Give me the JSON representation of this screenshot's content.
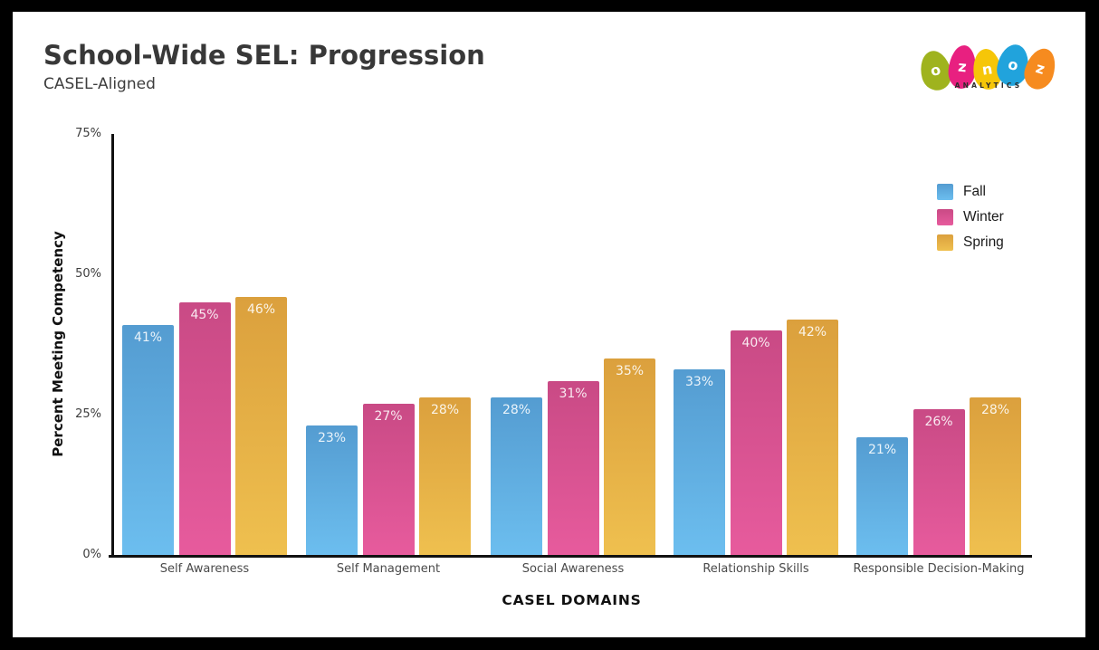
{
  "header": {
    "title": "School-Wide SEL: Progression",
    "subtitle": "CASEL-Aligned"
  },
  "logo": {
    "letters": [
      "o",
      "z",
      "n",
      "o",
      "z"
    ],
    "egg_colors": [
      "#9FB31E",
      "#E82080",
      "#F6C608",
      "#21A3DC",
      "#F68B1F"
    ],
    "tagline": "ANALYTICS"
  },
  "chart_data": {
    "type": "bar",
    "title": "School-Wide SEL: Progression",
    "subtitle": "CASEL-Aligned",
    "categories": [
      "Self Awareness",
      "Self Management",
      "Social Awareness",
      "Relationship Skills",
      "Responsible Decision-Making"
    ],
    "series": [
      {
        "name": "Fall",
        "values": [
          41,
          23,
          28,
          33,
          21
        ],
        "color_top": "#549CD1",
        "color_bottom": "#6CBEEF"
      },
      {
        "name": "Winter",
        "values": [
          45,
          27,
          31,
          40,
          26
        ],
        "color_top": "#C94A85",
        "color_bottom": "#E75B9D"
      },
      {
        "name": "Spring",
        "values": [
          46,
          28,
          35,
          42,
          28
        ],
        "color_top": "#DBA03D",
        "color_bottom": "#EFC04F"
      }
    ],
    "xlabel": "CASEL DOMAINS",
    "ylabel": "Percent Meeting Competency",
    "value_suffix": "%",
    "ylim": [
      0,
      75
    ],
    "y_ticks": [
      {
        "value": 0,
        "label": "0%"
      },
      {
        "value": 25,
        "label": "25%"
      },
      {
        "value": 50,
        "label": "50%"
      },
      {
        "value": 75,
        "label": "75%"
      }
    ],
    "legend": {
      "position": "right",
      "items": [
        "Fall",
        "Winter",
        "Spring"
      ]
    },
    "grid": false,
    "bar_labels": "inside-top"
  }
}
